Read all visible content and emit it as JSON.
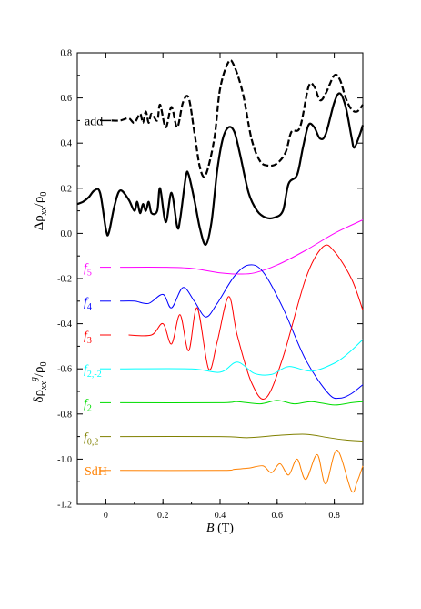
{
  "chart_data": {
    "type": "line",
    "x_axis": {
      "label_italic": "B",
      "label_rest": " (T)",
      "range": [
        -0.1,
        0.9
      ],
      "ticks": [
        0.0,
        0.2,
        0.4,
        0.6,
        0.8
      ],
      "tick_labels": [
        "0",
        "0.2",
        "0.4",
        "0.6",
        "0.8"
      ]
    },
    "y_axis": {
      "range": [
        -1.2,
        0.8
      ],
      "ticks": [
        0.8,
        0.6,
        0.4,
        0.2,
        0.0,
        -0.2,
        -0.4,
        -0.6,
        -0.8,
        -1.0,
        -1.2
      ],
      "tick_labels": [
        "0.8",
        "0.6",
        "0.4",
        "0.2",
        "0.0",
        "-0.2",
        "-0.4",
        "-0.6",
        "-0.8",
        "-1.0",
        "-1.2"
      ],
      "label_upper": "Δρ_xx/ρ_0",
      "label_lower": "δρ_xx^g/ρ_0"
    },
    "series": [
      {
        "name": "add",
        "color": "#000000",
        "style": "dashed",
        "points": [
          [
            0.02,
            0.5
          ],
          [
            0.05,
            0.5
          ],
          [
            0.08,
            0.51
          ],
          [
            0.1,
            0.49
          ],
          [
            0.12,
            0.53
          ],
          [
            0.13,
            0.49
          ],
          [
            0.14,
            0.54
          ],
          [
            0.15,
            0.49
          ],
          [
            0.16,
            0.53
          ],
          [
            0.18,
            0.5
          ],
          [
            0.19,
            0.57
          ],
          [
            0.21,
            0.47
          ],
          [
            0.23,
            0.56
          ],
          [
            0.25,
            0.47
          ],
          [
            0.27,
            0.58
          ],
          [
            0.29,
            0.6
          ],
          [
            0.31,
            0.45
          ],
          [
            0.33,
            0.29
          ],
          [
            0.35,
            0.26
          ],
          [
            0.38,
            0.42
          ],
          [
            0.4,
            0.64
          ],
          [
            0.43,
            0.76
          ],
          [
            0.45,
            0.74
          ],
          [
            0.48,
            0.62
          ],
          [
            0.51,
            0.42
          ],
          [
            0.54,
            0.32
          ],
          [
            0.57,
            0.3
          ],
          [
            0.6,
            0.31
          ],
          [
            0.63,
            0.36
          ],
          [
            0.65,
            0.45
          ],
          [
            0.68,
            0.47
          ],
          [
            0.71,
            0.65
          ],
          [
            0.73,
            0.65
          ],
          [
            0.75,
            0.59
          ],
          [
            0.77,
            0.62
          ],
          [
            0.8,
            0.7
          ],
          [
            0.82,
            0.68
          ],
          [
            0.84,
            0.6
          ],
          [
            0.86,
            0.55
          ],
          [
            0.88,
            0.54
          ],
          [
            0.9,
            0.57
          ]
        ]
      },
      {
        "name": "",
        "color": "#000000",
        "style": "solid",
        "points": [
          [
            -0.1,
            0.13
          ],
          [
            -0.08,
            0.14
          ],
          [
            -0.06,
            0.16
          ],
          [
            -0.04,
            0.19
          ],
          [
            -0.02,
            0.18
          ],
          [
            0.0,
            0.02
          ],
          [
            0.01,
            0.0
          ],
          [
            0.03,
            0.12
          ],
          [
            0.05,
            0.19
          ],
          [
            0.08,
            0.15
          ],
          [
            0.1,
            0.1
          ],
          [
            0.11,
            0.14
          ],
          [
            0.12,
            0.09
          ],
          [
            0.13,
            0.13
          ],
          [
            0.14,
            0.1
          ],
          [
            0.15,
            0.14
          ],
          [
            0.16,
            0.09
          ],
          [
            0.18,
            0.1
          ],
          [
            0.19,
            0.2
          ],
          [
            0.21,
            0.05
          ],
          [
            0.23,
            0.18
          ],
          [
            0.25,
            0.03
          ],
          [
            0.26,
            0.06
          ],
          [
            0.28,
            0.25
          ],
          [
            0.29,
            0.26
          ],
          [
            0.31,
            0.15
          ],
          [
            0.33,
            0.02
          ],
          [
            0.35,
            -0.05
          ],
          [
            0.37,
            0.05
          ],
          [
            0.39,
            0.28
          ],
          [
            0.41,
            0.42
          ],
          [
            0.43,
            0.47
          ],
          [
            0.45,
            0.45
          ],
          [
            0.47,
            0.35
          ],
          [
            0.5,
            0.18
          ],
          [
            0.53,
            0.1
          ],
          [
            0.56,
            0.07
          ],
          [
            0.59,
            0.07
          ],
          [
            0.62,
            0.1
          ],
          [
            0.64,
            0.22
          ],
          [
            0.67,
            0.26
          ],
          [
            0.69,
            0.38
          ],
          [
            0.71,
            0.48
          ],
          [
            0.73,
            0.47
          ],
          [
            0.75,
            0.42
          ],
          [
            0.77,
            0.44
          ],
          [
            0.8,
            0.58
          ],
          [
            0.82,
            0.62
          ],
          [
            0.84,
            0.56
          ],
          [
            0.86,
            0.43
          ],
          [
            0.87,
            0.38
          ],
          [
            0.89,
            0.44
          ],
          [
            0.9,
            0.48
          ]
        ]
      },
      {
        "name": "f_5",
        "color": "#ff00ff",
        "baseline": -0.15,
        "start": 0.05,
        "kind": "smooth",
        "points": [
          [
            0.05,
            -0.15
          ],
          [
            0.2,
            -0.15
          ],
          [
            0.3,
            -0.155
          ],
          [
            0.4,
            -0.175
          ],
          [
            0.46,
            -0.18
          ],
          [
            0.52,
            -0.175
          ],
          [
            0.6,
            -0.14
          ],
          [
            0.7,
            -0.075
          ],
          [
            0.8,
            0.0
          ],
          [
            0.9,
            0.06
          ]
        ]
      },
      {
        "name": "f_4",
        "color": "#0000ff",
        "baseline": -0.3,
        "start": 0.05,
        "kind": "osc",
        "points": [
          [
            0.05,
            -0.3
          ],
          [
            0.1,
            -0.3
          ],
          [
            0.15,
            -0.31
          ],
          [
            0.2,
            -0.27
          ],
          [
            0.23,
            -0.33
          ],
          [
            0.27,
            -0.24
          ],
          [
            0.31,
            -0.3
          ],
          [
            0.35,
            -0.37
          ],
          [
            0.39,
            -0.31
          ],
          [
            0.45,
            -0.19
          ],
          [
            0.5,
            -0.14
          ],
          [
            0.55,
            -0.17
          ],
          [
            0.62,
            -0.33
          ],
          [
            0.7,
            -0.56
          ],
          [
            0.78,
            -0.71
          ],
          [
            0.82,
            -0.73
          ],
          [
            0.86,
            -0.71
          ],
          [
            0.9,
            -0.67
          ]
        ]
      },
      {
        "name": "f_3",
        "color": "#ff0000",
        "baseline": -0.45,
        "start": 0.08,
        "kind": "osc",
        "points": [
          [
            0.08,
            -0.45
          ],
          [
            0.16,
            -0.45
          ],
          [
            0.2,
            -0.4
          ],
          [
            0.23,
            -0.49
          ],
          [
            0.26,
            -0.36
          ],
          [
            0.29,
            -0.52
          ],
          [
            0.32,
            -0.33
          ],
          [
            0.36,
            -0.6
          ],
          [
            0.39,
            -0.48
          ],
          [
            0.43,
            -0.28
          ],
          [
            0.46,
            -0.45
          ],
          [
            0.51,
            -0.66
          ],
          [
            0.56,
            -0.73
          ],
          [
            0.62,
            -0.55
          ],
          [
            0.7,
            -0.2
          ],
          [
            0.76,
            -0.06
          ],
          [
            0.8,
            -0.08
          ],
          [
            0.86,
            -0.2
          ],
          [
            0.9,
            -0.34
          ]
        ]
      },
      {
        "name": "f_2,-2",
        "color": "#00ffff",
        "baseline": -0.6,
        "start": 0.05,
        "kind": "smooth",
        "points": [
          [
            0.05,
            -0.6
          ],
          [
            0.3,
            -0.6
          ],
          [
            0.4,
            -0.615
          ],
          [
            0.46,
            -0.57
          ],
          [
            0.52,
            -0.62
          ],
          [
            0.58,
            -0.625
          ],
          [
            0.64,
            -0.59
          ],
          [
            0.72,
            -0.61
          ],
          [
            0.8,
            -0.575
          ],
          [
            0.85,
            -0.53
          ],
          [
            0.9,
            -0.47
          ]
        ]
      },
      {
        "name": "f_2",
        "color": "#00dd00",
        "baseline": -0.75,
        "start": 0.05,
        "kind": "smooth",
        "points": [
          [
            0.05,
            -0.75
          ],
          [
            0.4,
            -0.75
          ],
          [
            0.46,
            -0.745
          ],
          [
            0.54,
            -0.755
          ],
          [
            0.6,
            -0.74
          ],
          [
            0.66,
            -0.755
          ],
          [
            0.72,
            -0.745
          ],
          [
            0.8,
            -0.76
          ],
          [
            0.86,
            -0.75
          ],
          [
            0.9,
            -0.745
          ]
        ]
      },
      {
        "name": "f_0,2",
        "color": "#808000",
        "baseline": -0.9,
        "start": 0.05,
        "kind": "smooth",
        "points": [
          [
            0.05,
            -0.9
          ],
          [
            0.4,
            -0.9
          ],
          [
            0.5,
            -0.905
          ],
          [
            0.6,
            -0.895
          ],
          [
            0.7,
            -0.89
          ],
          [
            0.78,
            -0.905
          ],
          [
            0.84,
            -0.915
          ],
          [
            0.9,
            -0.92
          ]
        ]
      },
      {
        "name": "SdH",
        "color": "#ff8000",
        "baseline": -1.05,
        "start": 0.05,
        "kind": "osc",
        "points": [
          [
            0.05,
            -1.05
          ],
          [
            0.4,
            -1.05
          ],
          [
            0.45,
            -1.045
          ],
          [
            0.5,
            -1.04
          ],
          [
            0.55,
            -1.03
          ],
          [
            0.58,
            -1.06
          ],
          [
            0.61,
            -1.02
          ],
          [
            0.64,
            -1.07
          ],
          [
            0.67,
            -1.0
          ],
          [
            0.7,
            -1.09
          ],
          [
            0.74,
            -0.98
          ],
          [
            0.77,
            -1.11
          ],
          [
            0.81,
            -0.96
          ],
          [
            0.86,
            -1.14
          ],
          [
            0.88,
            -1.1
          ],
          [
            0.9,
            -1.03
          ]
        ]
      }
    ],
    "legend": [
      {
        "key": "add",
        "text": "add",
        "sub": "",
        "color": "#000000",
        "y": 0.5
      },
      {
        "key": "f5",
        "text": "f",
        "sub": "5",
        "color": "#ff00ff",
        "y": -0.15
      },
      {
        "key": "f4",
        "text": "f",
        "sub": "4",
        "color": "#0000ff",
        "y": -0.3
      },
      {
        "key": "f3",
        "text": "f",
        "sub": "3",
        "color": "#ff0000",
        "y": -0.45
      },
      {
        "key": "f2m2",
        "text": "f",
        "sub": "2,-2",
        "color": "#00ffff",
        "y": -0.6
      },
      {
        "key": "f2",
        "text": "f",
        "sub": "2",
        "color": "#00dd00",
        "y": -0.75
      },
      {
        "key": "f02",
        "text": "f",
        "sub": "0,2",
        "color": "#808000",
        "y": -0.9
      },
      {
        "key": "sdh",
        "text": "SdH",
        "sub": "",
        "color": "#ff8000",
        "y": -1.05
      }
    ]
  }
}
